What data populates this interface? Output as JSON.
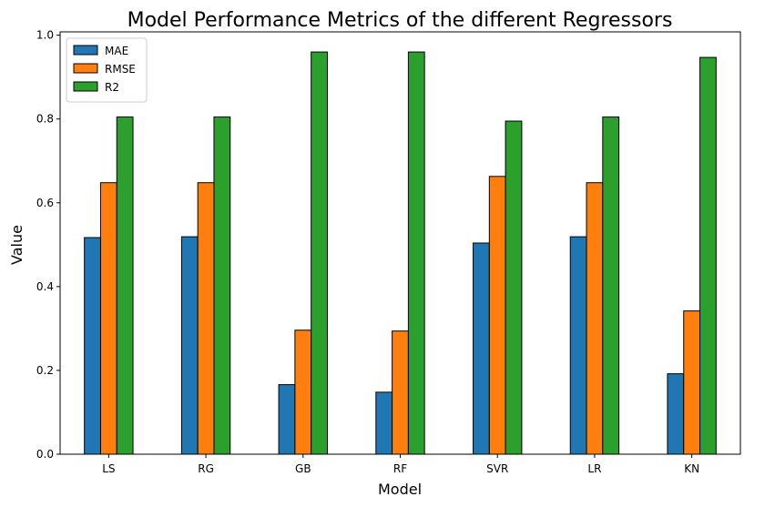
{
  "chart_data": {
    "type": "bar",
    "title": "Model Performance Metrics of the different Regressors",
    "xlabel": "Model",
    "ylabel": "Value",
    "categories": [
      "LS",
      "RG",
      "GB",
      "RF",
      "SVR",
      "LR",
      "KN"
    ],
    "series": [
      {
        "name": "MAE",
        "color": "#1f77b4",
        "values": [
          0.517,
          0.519,
          0.166,
          0.148,
          0.504,
          0.519,
          0.192
        ]
      },
      {
        "name": "RMSE",
        "color": "#ff7f0e",
        "values": [
          0.648,
          0.648,
          0.296,
          0.294,
          0.663,
          0.648,
          0.342
        ]
      },
      {
        "name": "R2",
        "color": "#2ca02c",
        "values": [
          0.805,
          0.805,
          0.96,
          0.96,
          0.795,
          0.805,
          0.947
        ]
      }
    ],
    "yticks": [
      "0.0",
      "0.2",
      "0.4",
      "0.6",
      "0.8",
      "1.0"
    ],
    "ylim": [
      0,
      1.008
    ],
    "legend_position": "top-left",
    "grid": false
  }
}
